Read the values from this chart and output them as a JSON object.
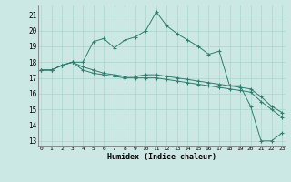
{
  "title": "",
  "xlabel": "Humidex (Indice chaleur)",
  "bg_color": "#cce8e4",
  "grid_color": "#aad4ce",
  "line_color": "#2e7d6e",
  "xlim": [
    -0.3,
    23.3
  ],
  "ylim": [
    12.7,
    21.6
  ],
  "yticks": [
    13,
    14,
    15,
    16,
    17,
    18,
    19,
    20,
    21
  ],
  "xticks": [
    0,
    1,
    2,
    3,
    4,
    5,
    6,
    7,
    8,
    9,
    10,
    11,
    12,
    13,
    14,
    15,
    16,
    17,
    18,
    19,
    20,
    21,
    22,
    23
  ],
  "series1_x": [
    0,
    1,
    2,
    3,
    4,
    5,
    6,
    7,
    8,
    9,
    10,
    11,
    12,
    13,
    14,
    15,
    16,
    17,
    18,
    19,
    20,
    21,
    22,
    23
  ],
  "series1_y": [
    17.5,
    17.5,
    17.8,
    18.0,
    18.0,
    19.3,
    19.5,
    18.9,
    19.4,
    19.6,
    20.0,
    21.2,
    20.3,
    19.8,
    19.4,
    19.0,
    18.5,
    18.7,
    16.5,
    16.5,
    15.2,
    13.0,
    13.0,
    13.5
  ],
  "series2_x": [
    0,
    1,
    2,
    3,
    4,
    5,
    6,
    7,
    8,
    9,
    10,
    11,
    12,
    13,
    14,
    15,
    16,
    17,
    18,
    19,
    20,
    21,
    22,
    23
  ],
  "series2_y": [
    17.5,
    17.5,
    17.8,
    18.0,
    17.5,
    17.3,
    17.2,
    17.1,
    17.0,
    17.0,
    17.0,
    17.0,
    16.9,
    16.8,
    16.7,
    16.6,
    16.5,
    16.4,
    16.3,
    16.2,
    16.1,
    15.5,
    15.0,
    14.5
  ],
  "series3_x": [
    0,
    1,
    2,
    3,
    4,
    5,
    6,
    7,
    8,
    9,
    10,
    11,
    12,
    13,
    14,
    15,
    16,
    17,
    18,
    19,
    20,
    21,
    22,
    23
  ],
  "series3_y": [
    17.5,
    17.5,
    17.8,
    18.0,
    17.7,
    17.5,
    17.3,
    17.2,
    17.1,
    17.1,
    17.2,
    17.2,
    17.1,
    17.0,
    16.9,
    16.8,
    16.7,
    16.6,
    16.5,
    16.4,
    16.3,
    15.8,
    15.2,
    14.8
  ]
}
